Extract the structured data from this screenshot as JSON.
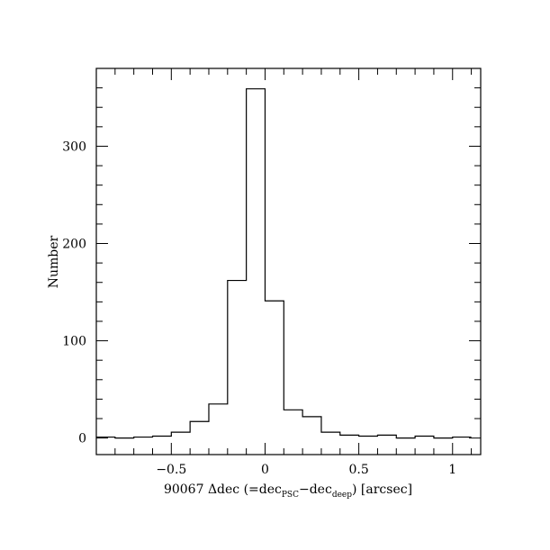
{
  "chart_data": {
    "type": "histogram",
    "title": "",
    "xlabel": {
      "prefix": "90067 Δdec (=dec",
      "sub1": "PSC",
      "mid": "−dec",
      "sub2": "deep",
      "suffix": ") [arcsec]"
    },
    "ylabel": "Number",
    "xlim": [
      -0.9,
      1.15
    ],
    "ylim": [
      -17,
      380
    ],
    "x_major_ticks": [
      -0.5,
      0,
      0.5,
      1
    ],
    "x_tick_labels": [
      "−0.5",
      "0",
      "0.5",
      "1"
    ],
    "x_minor_step": 0.1,
    "y_major_ticks": [
      0,
      100,
      200,
      300
    ],
    "y_tick_labels": [
      "0",
      "100",
      "200",
      "300"
    ],
    "y_minor_step": 20,
    "bin_width": 0.1,
    "bin_edges": [
      -0.9,
      -0.8,
      -0.7,
      -0.6,
      -0.5,
      -0.4,
      -0.3,
      -0.2,
      -0.1,
      0.0,
      0.1,
      0.2,
      0.3,
      0.4,
      0.5,
      0.6,
      0.7,
      0.8,
      0.9,
      1.0,
      1.1
    ],
    "counts": [
      1,
      0,
      1,
      2,
      6,
      17,
      35,
      162,
      359,
      141,
      29,
      22,
      6,
      3,
      2,
      3,
      0,
      2,
      0,
      1
    ]
  }
}
